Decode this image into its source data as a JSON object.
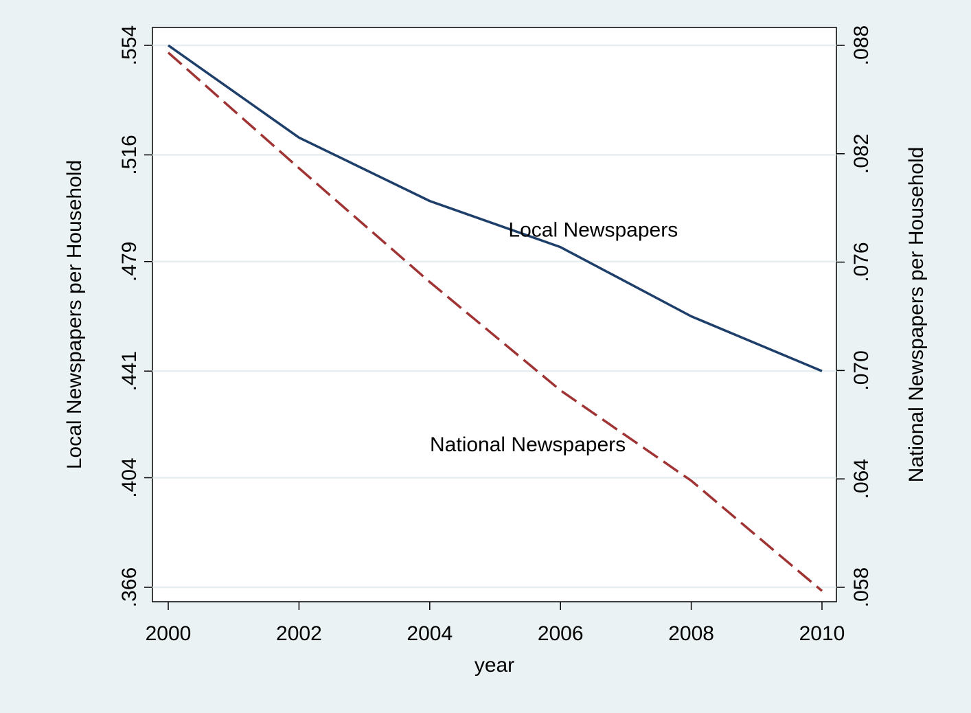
{
  "chart_data": {
    "type": "line",
    "xlabel": "year",
    "ylabel_left": "Local Newspapers per Household",
    "ylabel_right": "National Newspapers per Household",
    "x": [
      2000,
      2002,
      2004,
      2006,
      2008,
      2010
    ],
    "x_ticks": [
      "2000",
      "2002",
      "2004",
      "2006",
      "2008",
      "2010"
    ],
    "xlim": [
      2000,
      2010
    ],
    "ylim_left": [
      0.366,
      0.554
    ],
    "ylim_right": [
      0.058,
      0.088
    ],
    "yticks_left": [
      {
        "value": 0.554,
        "label": ".554"
      },
      {
        "value": 0.516,
        "label": ".516"
      },
      {
        "value": 0.479,
        "label": ".479"
      },
      {
        "value": 0.441,
        "label": ".441"
      },
      {
        "value": 0.404,
        "label": ".404"
      },
      {
        "value": 0.366,
        "label": ".366"
      }
    ],
    "yticks_right": [
      {
        "value": 0.088,
        "label": ".088"
      },
      {
        "value": 0.082,
        "label": ".082"
      },
      {
        "value": 0.076,
        "label": ".076"
      },
      {
        "value": 0.07,
        "label": ".070"
      },
      {
        "value": 0.064,
        "label": ".064"
      },
      {
        "value": 0.058,
        "label": ".058"
      }
    ],
    "grid": true,
    "series": [
      {
        "name": "Local Newspapers",
        "axis": "left",
        "style": "solid",
        "color": "#1f3f6b",
        "values": [
          0.554,
          0.522,
          0.5,
          0.484,
          0.46,
          0.441
        ]
      },
      {
        "name": "National Newspapers",
        "axis": "right",
        "style": "dashed",
        "color": "#a03434",
        "values": [
          0.0876,
          0.0812,
          0.0749,
          0.0689,
          0.0639,
          0.0578
        ]
      }
    ],
    "annotations": [
      {
        "text": "Local Newspapers",
        "series": "Local Newspapers",
        "x": 2006.5,
        "y": 0.49
      },
      {
        "text": "National Newspapers",
        "series": "National Newspapers",
        "x": 2005.5,
        "y": 0.0659
      }
    ]
  }
}
